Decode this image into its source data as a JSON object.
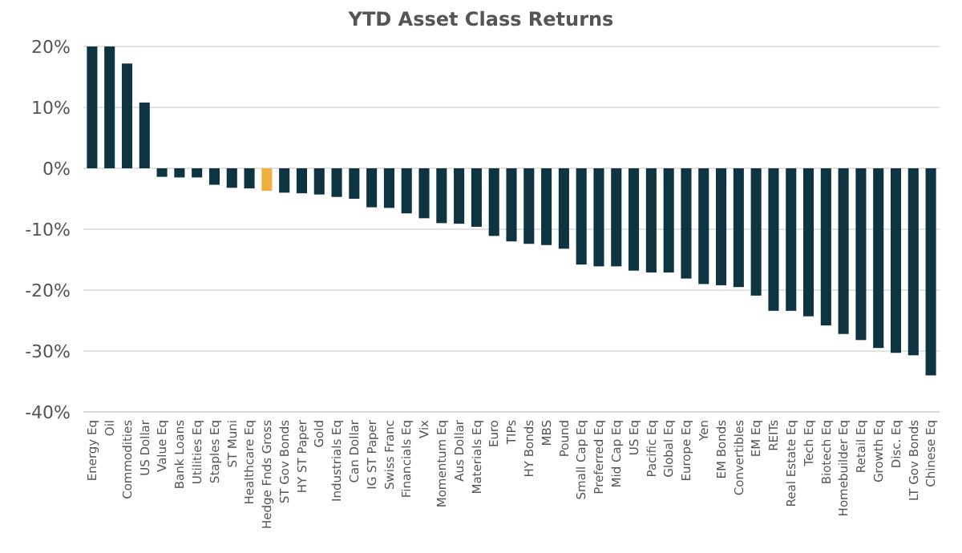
{
  "chart_data": {
    "type": "bar",
    "title": "YTD Asset Class Returns",
    "categories": [
      "Energy Eq",
      "Oil",
      "Commodities",
      "US Dollar",
      "Value Eq",
      "Bank Loans",
      "Utilities Eq",
      "Staples Eq",
      "ST Muni",
      "Healthcare Eq",
      "Hedge Fnds Gross",
      "ST Gov Bonds",
      "HY ST Paper",
      "Gold",
      "Industrials Eq",
      "Can Dollar",
      "IG ST Paper",
      "Swiss Franc",
      "Financials Eq",
      "Vix",
      "Momentum Eq",
      "Aus Dollar",
      "Materials Eq",
      "Euro",
      "TIPs",
      "HY Bonds",
      "MBS",
      "Pound",
      "Small Cap Eq",
      "Preferred Eq",
      "Mid Cap Eq",
      "US Eq",
      "Pacific Eq",
      "Global Eq",
      "Europe Eq",
      "Yen",
      "EM Bonds",
      "Convertibles",
      "EM Eq",
      "REITs",
      "Real Estate Eq",
      "Tech Eq",
      "Biotech Eq",
      "Homebuilder Eq",
      "Retail Eq",
      "Growth Eq",
      "Disc. Eq",
      "LT Gov Bonds",
      "Chinese Eq"
    ],
    "values": [
      20,
      20,
      17.2,
      10.8,
      -1.4,
      -1.5,
      -1.5,
      -2.7,
      -3.2,
      -3.3,
      -3.7,
      -4.0,
      -4.1,
      -4.3,
      -4.7,
      -5.0,
      -6.4,
      -6.5,
      -7.4,
      -8.2,
      -9.0,
      -9.1,
      -9.6,
      -11.1,
      -12.0,
      -12.4,
      -12.6,
      -13.2,
      -15.8,
      -16.1,
      -16.1,
      -16.8,
      -17.1,
      -17.1,
      -18.1,
      -19.0,
      -19.2,
      -19.5,
      -20.9,
      -23.4,
      -23.4,
      -24.3,
      -25.8,
      -27.2,
      -28.2,
      -29.5,
      -30.3,
      -30.7,
      -34.0
    ],
    "colors": [
      "#0e3442",
      "#0e3442",
      "#0e3442",
      "#0e3442",
      "#0e3442",
      "#0e3442",
      "#0e3442",
      "#0e3442",
      "#0e3442",
      "#0e3442",
      "#f0b040",
      "#0e3442",
      "#0e3442",
      "#0e3442",
      "#0e3442",
      "#0e3442",
      "#0e3442",
      "#0e3442",
      "#0e3442",
      "#0e3442",
      "#0e3442",
      "#0e3442",
      "#0e3442",
      "#0e3442",
      "#0e3442",
      "#0e3442",
      "#0e3442",
      "#0e3442",
      "#0e3442",
      "#0e3442",
      "#0e3442",
      "#0e3442",
      "#0e3442",
      "#0e3442",
      "#0e3442",
      "#0e3442",
      "#0e3442",
      "#0e3442",
      "#0e3442",
      "#0e3442",
      "#0e3442",
      "#0e3442",
      "#0e3442",
      "#0e3442",
      "#0e3442",
      "#0e3442",
      "#0e3442",
      "#0e3442",
      "#0e3442"
    ],
    "ylim": [
      -40,
      20
    ],
    "yticks": [
      {
        "value": -40,
        "label": "-40%"
      },
      {
        "value": -30,
        "label": "-30%"
      },
      {
        "value": -20,
        "label": "-20%"
      },
      {
        "value": -10,
        "label": "-10%"
      },
      {
        "value": 0,
        "label": "0%"
      },
      {
        "value": 10,
        "label": "10%"
      },
      {
        "value": 20,
        "label": "20%"
      }
    ],
    "grid": "y"
  }
}
